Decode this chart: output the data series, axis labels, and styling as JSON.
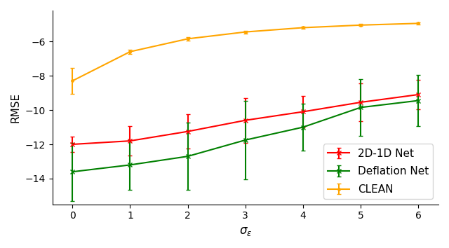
{
  "x": [
    0,
    1,
    2,
    3,
    4,
    5,
    6
  ],
  "net2d1d_y": [
    -12.0,
    -11.8,
    -11.25,
    -10.6,
    -10.1,
    -9.55,
    -9.1
  ],
  "net2d1d_yerr_lo": [
    0.45,
    0.85,
    1.0,
    1.3,
    0.9,
    1.1,
    0.85
  ],
  "net2d1d_yerr_hi": [
    0.45,
    0.85,
    1.0,
    1.3,
    0.9,
    1.1,
    0.85
  ],
  "deflation_y": [
    -13.6,
    -13.2,
    -12.7,
    -11.75,
    -11.0,
    -9.85,
    -9.45
  ],
  "deflation_yerr_lo": [
    1.7,
    1.45,
    1.95,
    2.3,
    1.35,
    1.65,
    1.5
  ],
  "deflation_yerr_hi": [
    1.7,
    1.45,
    1.95,
    2.3,
    1.35,
    1.65,
    1.5
  ],
  "clean_y": [
    -8.3,
    -6.6,
    -5.85,
    -5.45,
    -5.2,
    -5.05,
    -4.95
  ],
  "clean_yerr_lo": [
    0.75,
    0.12,
    0.1,
    0.08,
    0.07,
    0.06,
    0.05
  ],
  "clean_yerr_hi": [
    0.75,
    0.12,
    0.1,
    0.08,
    0.07,
    0.06,
    0.05
  ],
  "color_2d1d": "#ff0000",
  "color_deflation": "#008000",
  "color_clean": "#ffa500",
  "xlabel": "$\\sigma_\\varepsilon$",
  "ylabel": "RMSE",
  "xlim": [
    -0.35,
    6.35
  ],
  "ylim": [
    -15.5,
    -4.2
  ],
  "xticks": [
    0,
    1,
    2,
    3,
    4,
    5,
    6
  ],
  "yticks": [
    -14,
    -12,
    -10,
    -8,
    -6
  ],
  "legend_labels": [
    "2D-1D Net",
    "Deflation Net",
    "CLEAN"
  ],
  "marker_net": "x",
  "marker_clean": ".",
  "linewidth": 1.5,
  "capsize": 2
}
